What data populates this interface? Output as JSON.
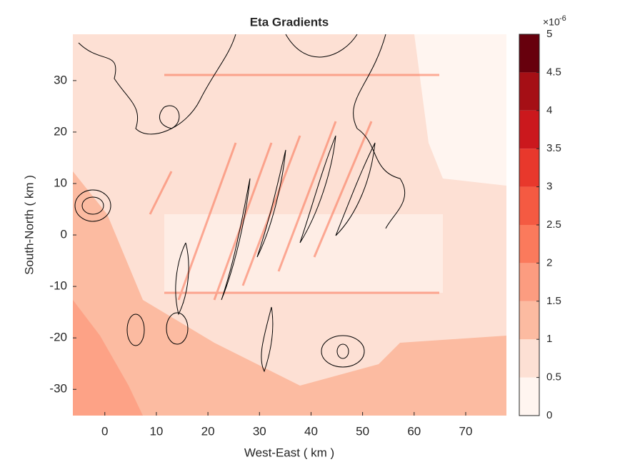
{
  "chart_data": {
    "type": "contourf",
    "title": "Eta Gradients",
    "xlabel": "West-East ( km )",
    "ylabel": "South-North ( km )",
    "xlim": [
      -6.2,
      77.9
    ],
    "xticks": [
      0,
      10,
      20,
      30,
      40,
      50,
      60,
      70
    ],
    "ylim": [
      -35.1,
      39
    ],
    "yticks": [
      -30,
      -20,
      -10,
      0,
      10,
      20,
      30
    ],
    "colorbar": {
      "scale_text": "×10",
      "exponent": "-6",
      "ticks": [
        0,
        0.5,
        1,
        1.5,
        2,
        2.5,
        3,
        3.5,
        4,
        4.5,
        5
      ],
      "colors": [
        "#fff5f0",
        "#fde0d4",
        "#fcbba1",
        "#fc9c80",
        "#fb7a5c",
        "#f45a42",
        "#e8382c",
        "#cb181d",
        "#a50f15",
        "#67000d"
      ]
    }
  }
}
